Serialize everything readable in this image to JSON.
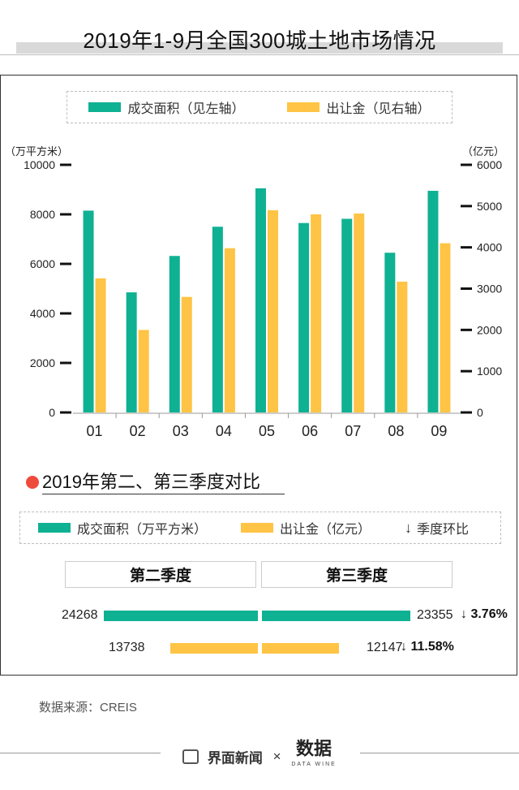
{
  "title": "2019年1-9月全国300城土地市场情况",
  "legend1": {
    "series1": "成交面积（见左轴）",
    "series2": "出让金（见右轴）"
  },
  "axis_units": {
    "left": "（万平方米）",
    "right": "（亿元）"
  },
  "chart_data": {
    "type": "bar",
    "categories": [
      "01",
      "02",
      "03",
      "04",
      "05",
      "06",
      "07",
      "08",
      "09"
    ],
    "series": [
      {
        "name": "成交面积（见左轴）",
        "axis": "left",
        "color": "#0fb193",
        "values": [
          8150,
          4850,
          6320,
          7500,
          9050,
          7650,
          7820,
          6450,
          8950
        ]
      },
      {
        "name": "出让金（见右轴）",
        "axis": "right",
        "color": "#ffc445",
        "values": [
          3250,
          2000,
          2800,
          3980,
          4900,
          4800,
          4820,
          3170,
          4100
        ]
      }
    ],
    "y_left": {
      "ylim": [
        0,
        10000
      ],
      "ticks": [
        0,
        2000,
        4000,
        6000,
        8000,
        10000
      ]
    },
    "y_right": {
      "ylim": [
        0,
        6000
      ],
      "ticks": [
        0,
        1000,
        2000,
        3000,
        4000,
        5000,
        6000
      ]
    },
    "grid": false
  },
  "section": {
    "title": "2019年第二、第三季度对比",
    "legend": {
      "area": "成交面积（万平方米）",
      "money": "出让金（亿元）",
      "change": "季度环比"
    },
    "headers": {
      "q2": "第二季度",
      "q3": "第三季度"
    },
    "rows": [
      {
        "q2_value": "24268",
        "q3_value": "23355",
        "change": "3.76%",
        "color": "#0fb193",
        "q2": 24268,
        "q3": 23355
      },
      {
        "q2_value": "13738",
        "q3_value": "12147",
        "change": "11.58%",
        "color": "#ffc445",
        "q2": 13738,
        "q3": 12147
      }
    ],
    "arrow": "↓"
  },
  "source": "数据来源：CREIS",
  "footer": {
    "brand1": "界面新闻",
    "sep": "×",
    "brand2": "数据",
    "brand2_sub": "DATA WINE"
  }
}
